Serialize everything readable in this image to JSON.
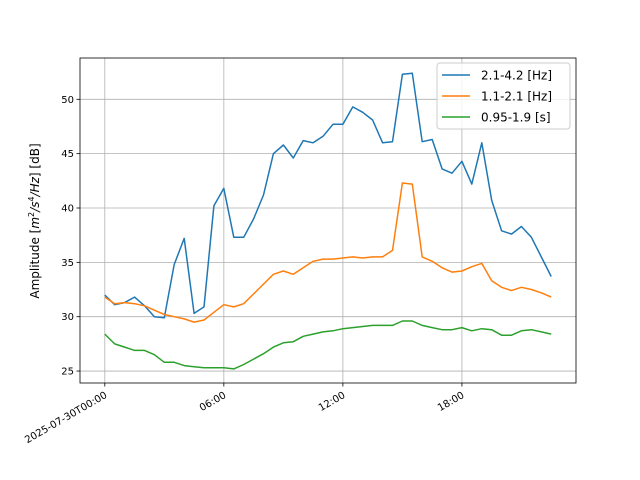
{
  "chart_data": {
    "type": "line",
    "xlabel": "",
    "ylabel": "Amplitude [$m^2/s^4/Hz$] [dB]",
    "ylabel_parts": {
      "prefix": "Amplitude [",
      "m": "m",
      "two": "2",
      "s": "/s",
      "four": "4",
      "hz": "/Hz",
      "suffix": "] [dB]"
    },
    "x_ticks": [
      "2025-07-30T00:00",
      "06:00",
      "12:00",
      "18:00"
    ],
    "x_tick_hours": [
      0,
      6,
      12,
      18
    ],
    "xlim_hours": [
      -1.25,
      23.75
    ],
    "y_ticks": [
      "25",
      "30",
      "35",
      "40",
      "45",
      "50"
    ],
    "y_tick_values": [
      25,
      30,
      35,
      40,
      45,
      50
    ],
    "ylim": [
      23.9,
      53.8
    ],
    "grid": true,
    "legend_position": "top-right",
    "series": [
      {
        "name": "2.1-4.2 [Hz]",
        "color": "#1f77b4",
        "x_hours": [
          0.0,
          0.5,
          1.0,
          1.5,
          2.0,
          2.5,
          3.0,
          3.5,
          4.0,
          4.5,
          5.0,
          5.5,
          6.0,
          6.5,
          7.0,
          7.5,
          8.0,
          8.5,
          9.0,
          9.5,
          10.0,
          10.5,
          11.0,
          11.5,
          12.0,
          12.5,
          13.0,
          13.5,
          14.0,
          14.5,
          15.0,
          15.5,
          16.0,
          16.5,
          17.0,
          17.5,
          18.0,
          18.5,
          19.0,
          19.5,
          20.0,
          20.5,
          21.0,
          21.5,
          22.0,
          22.5
        ],
        "y": [
          32.0,
          31.1,
          31.3,
          31.8,
          31.0,
          30.0,
          29.9,
          34.8,
          37.2,
          30.3,
          30.9,
          40.2,
          41.8,
          37.3,
          37.3,
          39.0,
          41.2,
          45.0,
          45.8,
          44.6,
          46.2,
          46.0,
          46.6,
          47.7,
          47.7,
          49.3,
          48.8,
          48.1,
          46.0,
          46.1,
          52.3,
          52.4,
          46.1,
          46.3,
          43.6,
          43.2,
          44.3,
          42.2,
          46.0,
          40.7,
          37.9,
          37.6,
          38.3,
          37.3,
          35.5,
          33.7
        ]
      },
      {
        "name": "1.1-2.1 [Hz]",
        "color": "#ff7f0e",
        "x_hours": [
          0.0,
          0.5,
          1.0,
          1.5,
          2.0,
          2.5,
          3.0,
          3.5,
          4.0,
          4.5,
          5.0,
          5.5,
          6.0,
          6.5,
          7.0,
          7.5,
          8.0,
          8.5,
          9.0,
          9.5,
          10.0,
          10.5,
          11.0,
          11.5,
          12.0,
          12.5,
          13.0,
          13.5,
          14.0,
          14.5,
          15.0,
          15.5,
          16.0,
          16.5,
          17.0,
          17.5,
          18.0,
          18.5,
          19.0,
          19.5,
          20.0,
          20.5,
          21.0,
          21.5,
          22.0,
          22.5
        ],
        "y": [
          31.8,
          31.2,
          31.3,
          31.2,
          31.0,
          30.6,
          30.2,
          30.0,
          29.8,
          29.5,
          29.7,
          30.4,
          31.1,
          30.9,
          31.2,
          32.1,
          33.0,
          33.9,
          34.2,
          33.9,
          34.5,
          35.1,
          35.3,
          35.3,
          35.4,
          35.5,
          35.4,
          35.5,
          35.5,
          36.1,
          42.3,
          42.2,
          35.5,
          35.1,
          34.5,
          34.1,
          34.2,
          34.6,
          34.9,
          33.3,
          32.7,
          32.4,
          32.7,
          32.5,
          32.2,
          31.8
        ]
      },
      {
        "name": "0.95-1.9 [s]",
        "color": "#2ca02c",
        "x_hours": [
          0.0,
          0.5,
          1.0,
          1.5,
          2.0,
          2.5,
          3.0,
          3.5,
          4.0,
          4.5,
          5.0,
          5.5,
          6.0,
          6.5,
          7.0,
          7.5,
          8.0,
          8.5,
          9.0,
          9.5,
          10.0,
          10.5,
          11.0,
          11.5,
          12.0,
          12.5,
          13.0,
          13.5,
          14.0,
          14.5,
          15.0,
          15.5,
          16.0,
          16.5,
          17.0,
          17.5,
          18.0,
          18.5,
          19.0,
          19.5,
          20.0,
          20.5,
          21.0,
          21.5,
          22.0,
          22.5
        ],
        "y": [
          28.4,
          27.5,
          27.2,
          26.9,
          26.9,
          26.5,
          25.8,
          25.8,
          25.5,
          25.4,
          25.3,
          25.3,
          25.3,
          25.2,
          25.6,
          26.1,
          26.6,
          27.2,
          27.6,
          27.7,
          28.2,
          28.4,
          28.6,
          28.7,
          28.9,
          29.0,
          29.1,
          29.2,
          29.2,
          29.2,
          29.6,
          29.6,
          29.2,
          29.0,
          28.8,
          28.8,
          29.0,
          28.7,
          28.9,
          28.8,
          28.3,
          28.3,
          28.7,
          28.8,
          28.6,
          28.4
        ]
      }
    ]
  }
}
